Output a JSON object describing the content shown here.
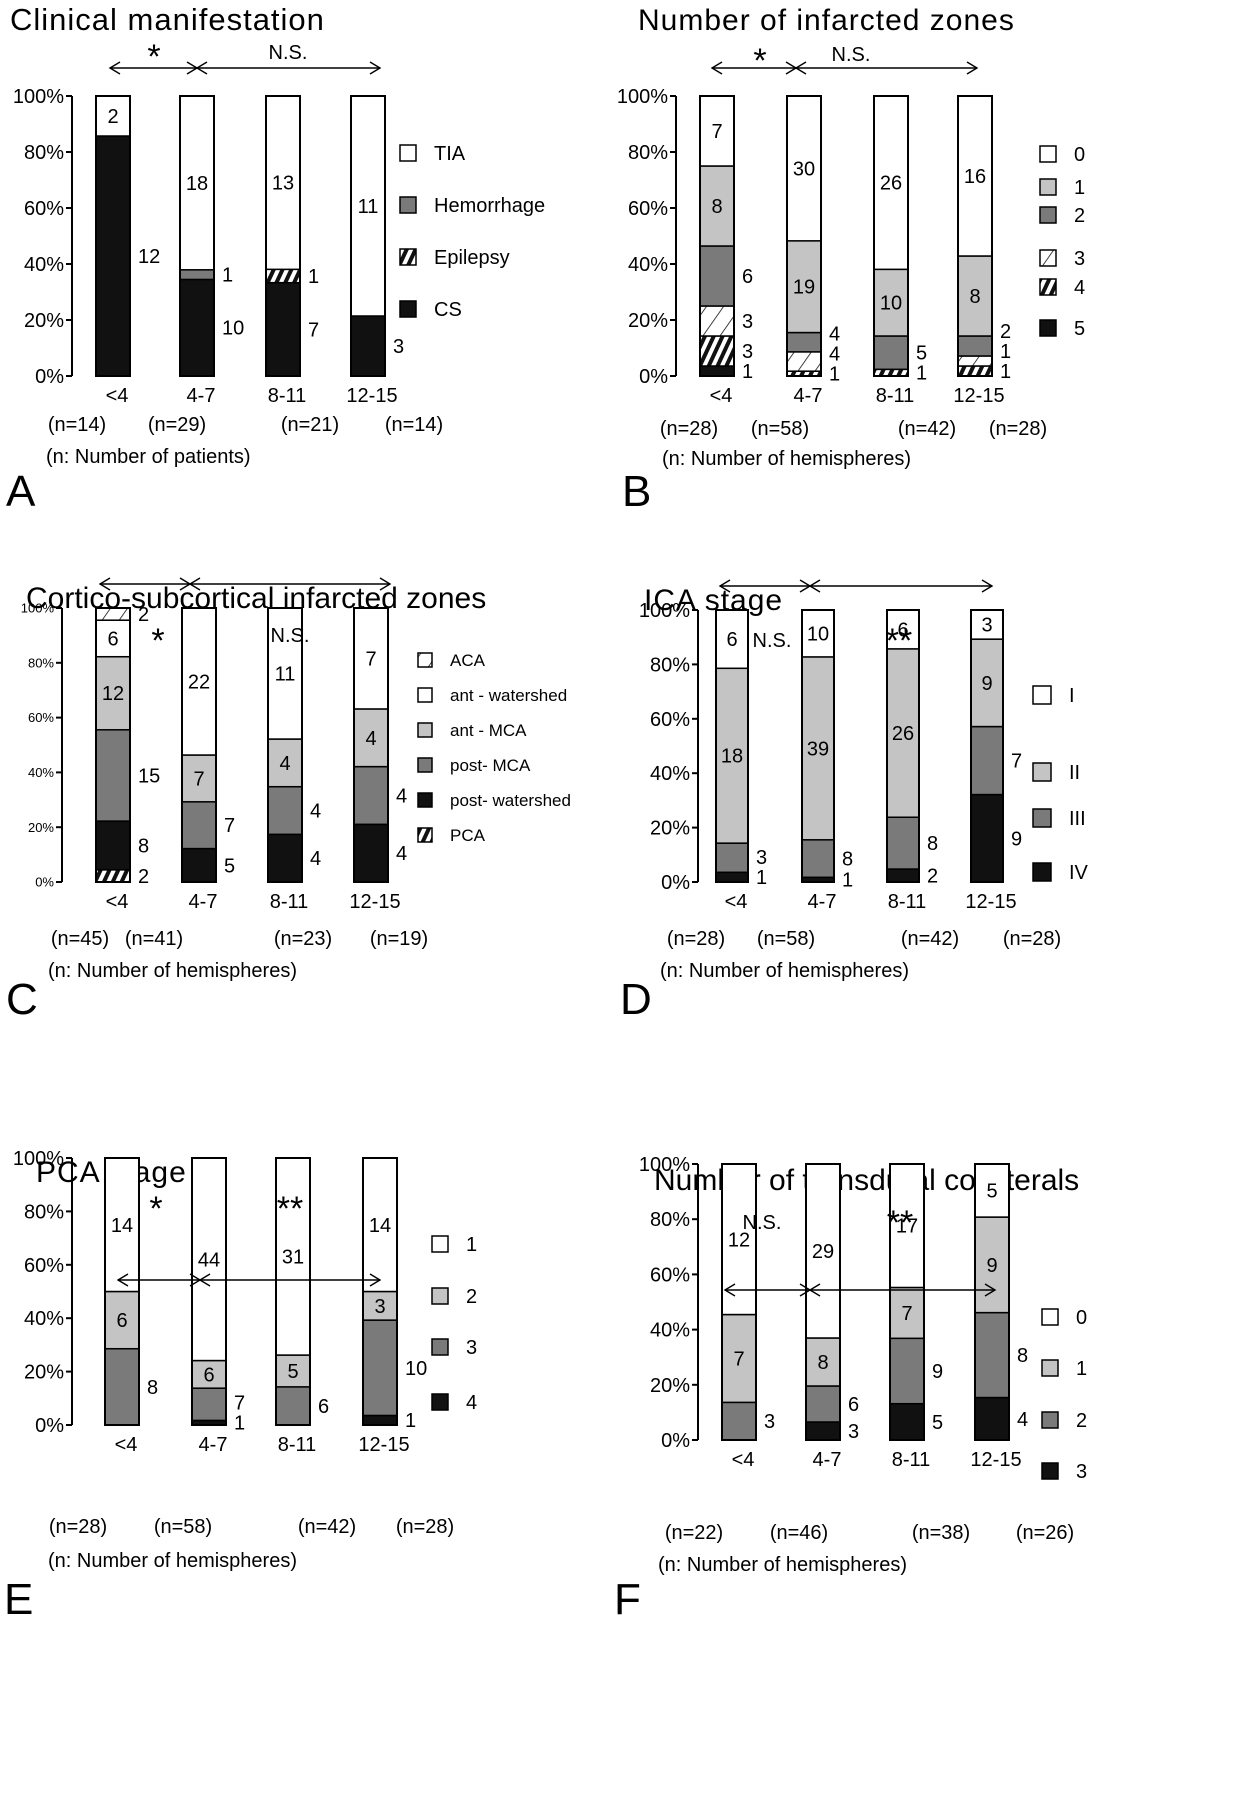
{
  "chart_data": [
    {
      "type": "bar",
      "stacked": true,
      "panel_letter": "A",
      "title": "Clinical manifestation",
      "categories": [
        "<4",
        "4-7",
        "8-11",
        "12-15"
      ],
      "n_labels": [
        "(n=14)",
        "(n=29)",
        "(n=21)",
        "(n=14)"
      ],
      "note": "(n: Number of patients)",
      "yticks": [
        "0%",
        "20%",
        "40%",
        "60%",
        "80%",
        "100%"
      ],
      "ylim": [
        0,
        100
      ],
      "significance": [
        {
          "from": 0,
          "to": 1,
          "label": "*"
        },
        {
          "from": 1,
          "to": 3,
          "label": "N.S."
        }
      ],
      "series": [
        {
          "name": "CS",
          "pattern": "black",
          "values": [
            12,
            10,
            7,
            3
          ]
        },
        {
          "name": "Epilepsy",
          "pattern": "hatch",
          "values": [
            0,
            0,
            1,
            0
          ]
        },
        {
          "name": "Hemorrhage",
          "pattern": "dark",
          "values": [
            0,
            1,
            0,
            0
          ]
        },
        {
          "name": "TIA",
          "pattern": "white",
          "values": [
            2,
            18,
            13,
            11
          ]
        }
      ],
      "legend_order": [
        "TIA",
        "Hemorrhage",
        "Epilepsy",
        "CS"
      ]
    },
    {
      "type": "bar",
      "stacked": true,
      "panel_letter": "B",
      "title": "Number of infarcted zones",
      "categories": [
        "<4",
        "4-7",
        "8-11",
        "12-15"
      ],
      "n_labels": [
        "(n=28)",
        "(n=58)",
        "(n=42)",
        "(n=28)"
      ],
      "note": "(n: Number of hemispheres)",
      "yticks": [
        "0%",
        "20%",
        "40%",
        "60%",
        "80%",
        "100%"
      ],
      "ylim": [
        0,
        100
      ],
      "significance": [
        {
          "from": 0,
          "to": 1,
          "label": "*"
        },
        {
          "from": 1,
          "to": 3,
          "label": "N.S."
        }
      ],
      "series": [
        {
          "name": "5",
          "pattern": "black",
          "values": [
            1,
            0,
            0,
            0
          ]
        },
        {
          "name": "4",
          "pattern": "hatch",
          "values": [
            3,
            1,
            1,
            1
          ]
        },
        {
          "name": "3",
          "pattern": "diag",
          "values": [
            3,
            4,
            0,
            1
          ]
        },
        {
          "name": "2",
          "pattern": "dark",
          "values": [
            6,
            4,
            5,
            2
          ]
        },
        {
          "name": "1",
          "pattern": "light",
          "values": [
            8,
            19,
            10,
            8
          ]
        },
        {
          "name": "0",
          "pattern": "white",
          "values": [
            7,
            30,
            26,
            16
          ]
        }
      ],
      "legend_order": [
        "0",
        "1",
        "2",
        "3",
        "4",
        "5"
      ]
    },
    {
      "type": "bar",
      "stacked": true,
      "panel_letter": "C",
      "title": "Cortico-subcortical infarcted zones",
      "categories": [
        "<4",
        "4-7",
        "8-11",
        "12-15"
      ],
      "n_labels": [
        "(n=45)",
        "(n=41)",
        "(n=23)",
        "(n=19)"
      ],
      "note": "(n: Number of hemispheres)",
      "yticks": [
        "0%",
        "20%",
        "40%",
        "60%",
        "80%",
        "100%"
      ],
      "ylim": [
        0,
        100
      ],
      "significance": [
        {
          "from": 0,
          "to": 1,
          "label": "*"
        },
        {
          "from": 1,
          "to": 3,
          "label": "N.S."
        }
      ],
      "series": [
        {
          "name": "PCA",
          "pattern": "hatch",
          "values": [
            2,
            0,
            0,
            0
          ]
        },
        {
          "name": "post- watershed",
          "pattern": "black",
          "values": [
            8,
            5,
            4,
            4
          ]
        },
        {
          "name": "post- MCA",
          "pattern": "dark",
          "values": [
            15,
            7,
            4,
            4
          ]
        },
        {
          "name": "ant - MCA",
          "pattern": "light",
          "values": [
            12,
            7,
            4,
            4
          ]
        },
        {
          "name": "ant - watershed",
          "pattern": "white",
          "values": [
            6,
            22,
            11,
            7
          ]
        },
        {
          "name": "ACA",
          "pattern": "diag",
          "values": [
            2,
            0,
            0,
            0
          ]
        }
      ],
      "legend_order": [
        "ACA",
        "ant - watershed",
        "ant - MCA",
        "post- MCA",
        "post- watershed",
        "PCA"
      ]
    },
    {
      "type": "bar",
      "stacked": true,
      "panel_letter": "D",
      "title": "ICA stage",
      "categories": [
        "<4",
        "4-7",
        "8-11",
        "12-15"
      ],
      "n_labels": [
        "(n=28)",
        "(n=58)",
        "(n=42)",
        "(n=28)"
      ],
      "note": "(n: Number of hemispheres)",
      "yticks": [
        "0%",
        "20%",
        "40%",
        "60%",
        "80%",
        "100%"
      ],
      "ylim": [
        0,
        100
      ],
      "significance": [
        {
          "from": 0,
          "to": 1,
          "label": "N.S."
        },
        {
          "from": 1,
          "to": 3,
          "label": "**"
        }
      ],
      "series": [
        {
          "name": "IV",
          "pattern": "black",
          "values": [
            1,
            1,
            2,
            9
          ]
        },
        {
          "name": "III",
          "pattern": "dark",
          "values": [
            3,
            8,
            8,
            7
          ]
        },
        {
          "name": "II",
          "pattern": "light",
          "values": [
            18,
            39,
            26,
            9
          ]
        },
        {
          "name": "I",
          "pattern": "white",
          "values": [
            6,
            10,
            6,
            3
          ]
        }
      ],
      "legend_order": [
        "I",
        "II",
        "III",
        "IV"
      ]
    },
    {
      "type": "bar",
      "stacked": true,
      "panel_letter": "E",
      "title": "PCA stage",
      "categories": [
        "<4",
        "4-7",
        "8-11",
        "12-15"
      ],
      "n_labels": [
        "(n=28)",
        "(n=58)",
        "(n=42)",
        "(n=28)"
      ],
      "note": "(n: Number of hemispheres)",
      "yticks": [
        "0%",
        "20%",
        "40%",
        "60%",
        "80%",
        "100%"
      ],
      "ylim": [
        0,
        100
      ],
      "significance": [
        {
          "from": 0,
          "to": 1,
          "label": "*"
        },
        {
          "from": 1,
          "to": 3,
          "label": "**"
        }
      ],
      "series": [
        {
          "name": "4",
          "pattern": "black",
          "values": [
            0,
            1,
            0,
            1
          ]
        },
        {
          "name": "3",
          "pattern": "dark",
          "values": [
            8,
            7,
            6,
            10
          ]
        },
        {
          "name": "2",
          "pattern": "light",
          "values": [
            6,
            6,
            5,
            3
          ]
        },
        {
          "name": "1",
          "pattern": "white",
          "values": [
            14,
            44,
            31,
            14
          ]
        }
      ],
      "legend_order": [
        "1",
        "2",
        "3",
        "4"
      ]
    },
    {
      "type": "bar",
      "stacked": true,
      "panel_letter": "F",
      "title": "Number of transdural collaterals",
      "categories": [
        "<4",
        "4-7",
        "8-11",
        "12-15"
      ],
      "n_labels": [
        "(n=22)",
        "(n=46)",
        "(n=38)",
        "(n=26)"
      ],
      "note": "(n: Number of hemispheres)",
      "yticks": [
        "0%",
        "20%",
        "40%",
        "60%",
        "80%",
        "100%"
      ],
      "ylim": [
        0,
        100
      ],
      "significance": [
        {
          "from": 0,
          "to": 1,
          "label": "N.S."
        },
        {
          "from": 1,
          "to": 3,
          "label": "**"
        }
      ],
      "series": [
        {
          "name": "3",
          "pattern": "black",
          "values": [
            0,
            3,
            5,
            4
          ]
        },
        {
          "name": "2",
          "pattern": "dark",
          "values": [
            3,
            6,
            9,
            8
          ]
        },
        {
          "name": "1",
          "pattern": "light",
          "values": [
            7,
            8,
            7,
            9
          ]
        },
        {
          "name": "0",
          "pattern": "white",
          "values": [
            12,
            29,
            17,
            5
          ]
        }
      ],
      "legend_order": [
        "0",
        "1",
        "2",
        "3"
      ]
    }
  ],
  "colors": {
    "black": "#111111",
    "dark": "#7a7a7a",
    "light": "#c4c4c4",
    "white": "#ffffff"
  }
}
